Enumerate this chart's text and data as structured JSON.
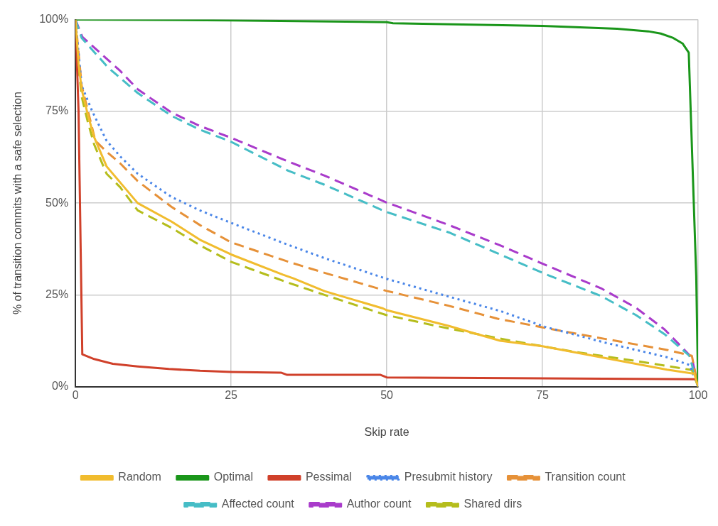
{
  "chart_data": {
    "type": "line",
    "xlabel": "Skip rate",
    "ylabel": "% of transition commits with a safe selection",
    "xlim": [
      0,
      100
    ],
    "ylim": [
      0,
      100
    ],
    "xticks": [
      0,
      25,
      50,
      75,
      100
    ],
    "yticks": [
      {
        "value": 0,
        "label": "0%"
      },
      {
        "value": 25,
        "label": "25%"
      },
      {
        "value": 50,
        "label": "50%"
      },
      {
        "value": 75,
        "label": "75%"
      },
      {
        "value": 100,
        "label": "100%"
      }
    ],
    "grid": true,
    "legend": "bottom",
    "marker": "none",
    "series": [
      {
        "name": "Random",
        "color": "#f1bc2e",
        "line_style": "solid",
        "x": [
          0,
          0.5,
          1,
          2,
          3,
          5,
          7.2,
          10,
          15.4,
          20,
          25,
          33.3,
          35,
          40,
          49.4,
          50,
          60,
          68.2,
          75,
          85,
          95,
          99.4,
          100
        ],
        "values": [
          100,
          88,
          81,
          74,
          68,
          60,
          55.6,
          50,
          45,
          40,
          36,
          30.5,
          29.5,
          26,
          21.3,
          20.8,
          16.5,
          12.5,
          11,
          7.8,
          4.6,
          3.5,
          0
        ]
      },
      {
        "name": "Optimal",
        "color": "#1a961a",
        "line_style": "solid",
        "x": [
          0,
          25,
          50,
          51,
          75,
          87,
          92,
          94,
          96,
          97.5,
          98.5,
          99.7,
          100
        ],
        "values": [
          100,
          99.8,
          99.3,
          99,
          98.3,
          97.5,
          96.8,
          96.2,
          95,
          93.5,
          91,
          30,
          0
        ]
      },
      {
        "name": "Pessimal",
        "color": "#d0402a",
        "line_style": "solid",
        "x": [
          0,
          0.5,
          1.1,
          3,
          6,
          10,
          15,
          20,
          25,
          33,
          34,
          49,
          50,
          100
        ],
        "values": [
          100,
          75,
          8.8,
          7.5,
          6.2,
          5.5,
          4.8,
          4.3,
          4,
          3.8,
          3.2,
          3.2,
          2.5,
          2
        ]
      },
      {
        "name": "Presubmit history",
        "color": "#4a86e8",
        "line_style": "dotted",
        "x": [
          0,
          1,
          2.7,
          5,
          7.2,
          10,
          15.4,
          20,
          25,
          34.2,
          40,
          49.9,
          60,
          68.2,
          75.4,
          85,
          95,
          98.6,
          100
        ],
        "values": [
          100,
          82,
          75,
          67,
          62.7,
          58,
          51.7,
          48,
          44.6,
          38.6,
          35,
          29.4,
          24.5,
          20.6,
          16.3,
          12,
          8,
          5.9,
          0
        ]
      },
      {
        "name": "Transition count",
        "color": "#e69138",
        "line_style": "dashed",
        "x": [
          0,
          1,
          3.2,
          5,
          7.2,
          10,
          15.4,
          20,
          25,
          34.2,
          40,
          49.9,
          60,
          67.8,
          75.4,
          85,
          95,
          99,
          100
        ],
        "values": [
          100,
          82,
          67,
          64,
          60.8,
          56,
          49,
          44,
          39.3,
          34,
          31,
          26.1,
          22,
          18.5,
          16,
          13,
          10,
          8.4,
          0
        ]
      },
      {
        "name": "Affected count",
        "color": "#46bdc6",
        "line_style": "dashed",
        "x": [
          0,
          1,
          5.2,
          10,
          15.4,
          20,
          25,
          34.2,
          40,
          49.9,
          60,
          68.2,
          75.4,
          84.4,
          90,
          94.6,
          98.6,
          100
        ],
        "values": [
          100,
          95,
          87,
          80,
          73.8,
          70,
          66.7,
          58.8,
          55,
          47.6,
          42,
          36,
          30.7,
          24.7,
          19.5,
          14.3,
          8.4,
          0
        ]
      },
      {
        "name": "Author count",
        "color": "#a93bcb",
        "line_style": "dashed",
        "x": [
          0,
          1.1,
          7.2,
          10,
          15.4,
          20,
          25,
          34.2,
          40,
          49.9,
          60,
          68.2,
          75.4,
          84.4,
          90,
          94.6,
          99,
          100
        ],
        "values": [
          100,
          95.3,
          86,
          81,
          74.7,
          71,
          67.8,
          61.3,
          57.5,
          50.2,
          44,
          38.5,
          33.2,
          26.8,
          21.5,
          15.6,
          7.9,
          0
        ]
      },
      {
        "name": "Shared dirs",
        "color": "#b5bd1c",
        "line_style": "dashed",
        "x": [
          0,
          0.5,
          1,
          2,
          3,
          5,
          7.2,
          10,
          15.4,
          20,
          25,
          34.2,
          40,
          49.9,
          60,
          70,
          80,
          90,
          99,
          100
        ],
        "values": [
          100,
          87,
          79,
          72,
          66,
          58,
          54.3,
          48,
          43.3,
          38.5,
          34,
          28.3,
          25,
          19.5,
          15.8,
          12.5,
          9.5,
          7,
          4.5,
          0
        ]
      }
    ]
  }
}
